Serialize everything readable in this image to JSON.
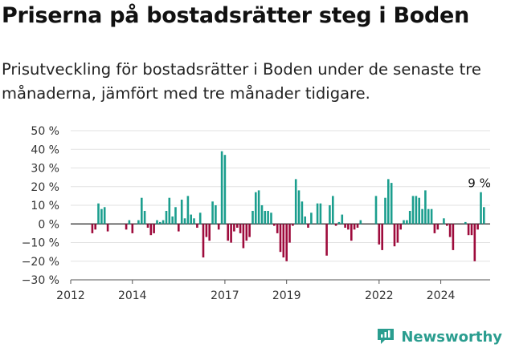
{
  "title": "Priserna på bostadsrätter steg i Boden",
  "subtitle": "Prisutveckling för bostadsrätter i Boden under de senaste tre månaderna, jämfört med tre månader tidigare.",
  "brand": {
    "name": "Newsworthy"
  },
  "colors": {
    "positive": "#1b9e8e",
    "negative": "#9e0b3c",
    "grid": "#e2e2e2",
    "brand": "#2a9d8f"
  },
  "chart_data": {
    "type": "bar",
    "title": "",
    "xlabel": "",
    "ylabel": "",
    "ylim": [
      -30,
      50
    ],
    "yticks": [
      -30,
      -20,
      -10,
      0,
      10,
      20,
      30,
      40,
      50
    ],
    "ytick_labels": [
      "−30 %",
      "−20 %",
      "−10 %",
      "0 %",
      "10 %",
      "20 %",
      "30 %",
      "40 %",
      "50 %"
    ],
    "xlim": [
      2012,
      2025.6
    ],
    "xticks": [
      2012,
      2014,
      2017,
      2019,
      2022,
      2024
    ],
    "xtick_labels": [
      "2012",
      "2014",
      "2017",
      "2019",
      "2022",
      "2024"
    ],
    "annotation": {
      "text": "9 %",
      "x": 2025.25,
      "y": 17
    },
    "series": [
      {
        "points": [
          [
            2012.7,
            -5
          ],
          [
            2012.8,
            -3
          ],
          [
            2012.9,
            11
          ],
          [
            2013.0,
            8
          ],
          [
            2013.1,
            9
          ],
          [
            2013.2,
            -4
          ],
          [
            2013.8,
            -3
          ],
          [
            2013.9,
            2
          ],
          [
            2014.0,
            -5
          ],
          [
            2014.2,
            2
          ],
          [
            2014.3,
            14
          ],
          [
            2014.4,
            7
          ],
          [
            2014.5,
            -2
          ],
          [
            2014.6,
            -6
          ],
          [
            2014.7,
            -5
          ],
          [
            2014.8,
            2
          ],
          [
            2014.9,
            1
          ],
          [
            2015.0,
            2
          ],
          [
            2015.1,
            7
          ],
          [
            2015.2,
            14
          ],
          [
            2015.3,
            4
          ],
          [
            2015.4,
            9
          ],
          [
            2015.5,
            -4
          ],
          [
            2015.6,
            13
          ],
          [
            2015.7,
            3
          ],
          [
            2015.8,
            15
          ],
          [
            2015.9,
            5
          ],
          [
            2016.0,
            3
          ],
          [
            2016.1,
            -2
          ],
          [
            2016.2,
            6
          ],
          [
            2016.3,
            -18
          ],
          [
            2016.4,
            -7
          ],
          [
            2016.5,
            -9
          ],
          [
            2016.6,
            12
          ],
          [
            2016.7,
            10
          ],
          [
            2016.8,
            -3
          ],
          [
            2016.9,
            39
          ],
          [
            2017.0,
            37
          ],
          [
            2017.1,
            -9
          ],
          [
            2017.2,
            -10
          ],
          [
            2017.3,
            -4
          ],
          [
            2017.4,
            -2
          ],
          [
            2017.5,
            -5
          ],
          [
            2017.6,
            -13
          ],
          [
            2017.7,
            -9
          ],
          [
            2017.8,
            -7
          ],
          [
            2017.9,
            7
          ],
          [
            2018.0,
            17
          ],
          [
            2018.1,
            18
          ],
          [
            2018.2,
            10
          ],
          [
            2018.3,
            7
          ],
          [
            2018.4,
            7
          ],
          [
            2018.5,
            6
          ],
          [
            2018.6,
            -1
          ],
          [
            2018.7,
            -5
          ],
          [
            2018.8,
            -15
          ],
          [
            2018.9,
            -18
          ],
          [
            2019.0,
            -20
          ],
          [
            2019.1,
            -10
          ],
          [
            2019.2,
            -1
          ],
          [
            2019.3,
            24
          ],
          [
            2019.4,
            18
          ],
          [
            2019.5,
            12
          ],
          [
            2019.6,
            4
          ],
          [
            2019.7,
            -2
          ],
          [
            2019.8,
            6
          ],
          [
            2020.0,
            11
          ],
          [
            2020.1,
            11
          ],
          [
            2020.3,
            -17
          ],
          [
            2020.4,
            10
          ],
          [
            2020.5,
            15
          ],
          [
            2020.6,
            -1
          ],
          [
            2020.7,
            1
          ],
          [
            2020.8,
            5
          ],
          [
            2020.9,
            -2
          ],
          [
            2021.0,
            -3
          ],
          [
            2021.1,
            -9
          ],
          [
            2021.2,
            -3
          ],
          [
            2021.3,
            -2
          ],
          [
            2021.4,
            2
          ],
          [
            2021.9,
            15
          ],
          [
            2022.0,
            -11
          ],
          [
            2022.1,
            -14
          ],
          [
            2022.2,
            14
          ],
          [
            2022.3,
            24
          ],
          [
            2022.4,
            22
          ],
          [
            2022.5,
            -12
          ],
          [
            2022.6,
            -10
          ],
          [
            2022.7,
            -3
          ],
          [
            2022.8,
            2
          ],
          [
            2022.9,
            2
          ],
          [
            2023.0,
            7
          ],
          [
            2023.1,
            15
          ],
          [
            2023.2,
            15
          ],
          [
            2023.3,
            14
          ],
          [
            2023.4,
            8
          ],
          [
            2023.5,
            18
          ],
          [
            2023.6,
            8
          ],
          [
            2023.7,
            8
          ],
          [
            2023.8,
            -5
          ],
          [
            2023.9,
            -3
          ],
          [
            2024.1,
            3
          ],
          [
            2024.2,
            -1
          ],
          [
            2024.3,
            -7
          ],
          [
            2024.4,
            -14
          ],
          [
            2024.8,
            1
          ],
          [
            2024.9,
            -6
          ],
          [
            2025.0,
            -6
          ],
          [
            2025.1,
            -20
          ],
          [
            2025.2,
            -3
          ],
          [
            2025.3,
            17
          ],
          [
            2025.4,
            9
          ]
        ]
      }
    ]
  }
}
